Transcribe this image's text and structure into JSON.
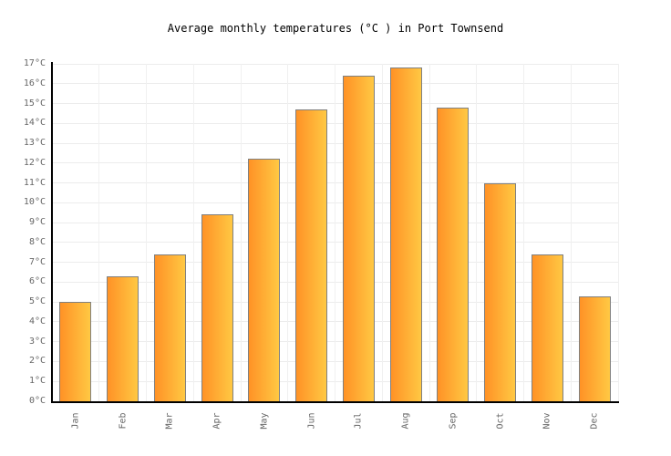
{
  "chart_data": {
    "type": "bar",
    "title": "Average monthly temperatures (°C ) in Port Townsend",
    "categories": [
      "Jan",
      "Feb",
      "Mar",
      "Apr",
      "May",
      "Jun",
      "Jul",
      "Aug",
      "Sep",
      "Oct",
      "Nov",
      "Dec"
    ],
    "values": [
      5.0,
      6.3,
      7.4,
      9.4,
      12.2,
      14.7,
      16.4,
      16.8,
      14.8,
      11.0,
      7.4,
      5.3
    ],
    "unit": "°C",
    "xlabel": "",
    "ylabel": "",
    "ylim": [
      0,
      17
    ],
    "ytick_step": 1,
    "ytick_labels": [
      "17°C",
      "16°C",
      "15°C",
      "14°C",
      "13°C",
      "12°C",
      "11°C",
      "10°C",
      "9°C",
      "8°C",
      "7°C",
      "6°C",
      "5°C",
      "4°C",
      "3°C",
      "2°C",
      "1°C",
      "0°C"
    ],
    "grid": true,
    "legend": false,
    "colors": {
      "bar_gradient_left": "#FF9226",
      "bar_gradient_right": "#FFC843",
      "bar_border": "#808080",
      "axis": "#000000",
      "gridline_h": "#ececec",
      "gridline_v": "#f0f0f0",
      "tick_label": "#666666",
      "title": "#000000"
    }
  }
}
